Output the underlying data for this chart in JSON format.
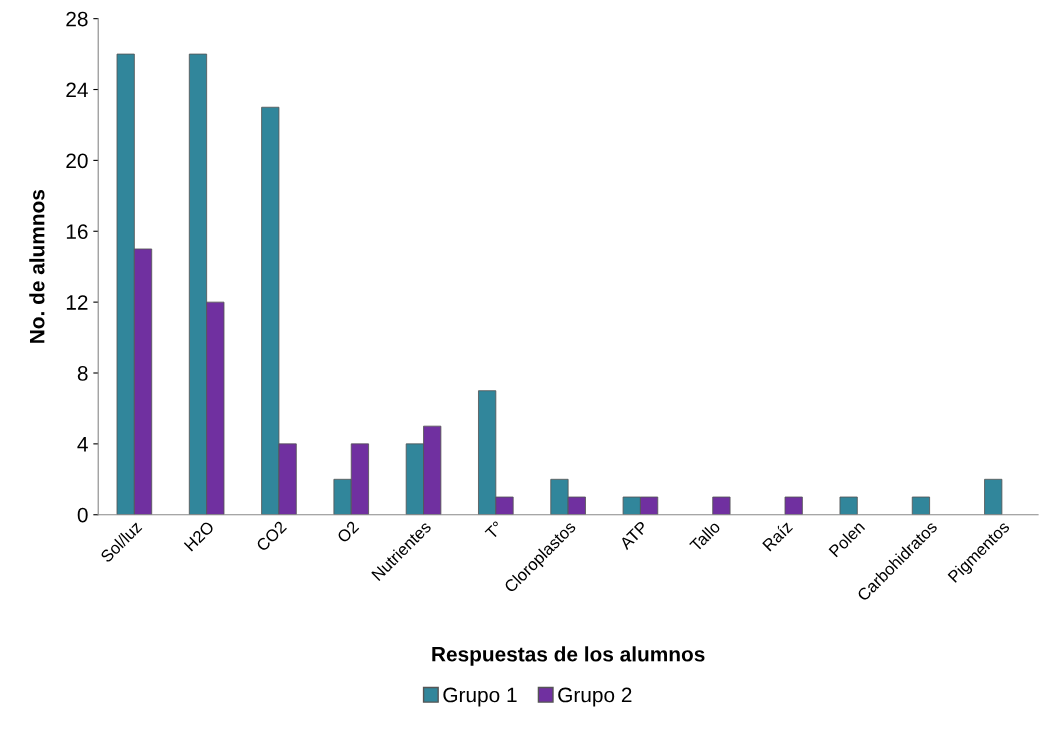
{
  "chart_data": {
    "type": "bar",
    "xlabel": "Respuestas de los alumnos",
    "ylabel": "No. de alumnos",
    "categories": [
      "Sol/luz",
      "H2O",
      "CO2",
      "O2",
      "Nutrientes",
      "T°",
      "Cloroplastos",
      "ATP",
      "Tallo",
      "Raíz",
      "Polen",
      "Carbohidratos",
      "Pigmentos"
    ],
    "series": [
      {
        "name": "Grupo 1",
        "color": "#31869b",
        "values": [
          26,
          26,
          23,
          2,
          4,
          7,
          2,
          1,
          0,
          0,
          1,
          1,
          2
        ]
      },
      {
        "name": "Grupo 2",
        "color": "#7030a0",
        "values": [
          15,
          12,
          4,
          4,
          5,
          1,
          1,
          1,
          1,
          1,
          0,
          0,
          0
        ]
      }
    ],
    "ylim": [
      0,
      28
    ],
    "yticks": [
      0,
      4,
      8,
      12,
      16,
      20,
      24,
      28
    ],
    "grid": false,
    "legend": "bottom"
  }
}
